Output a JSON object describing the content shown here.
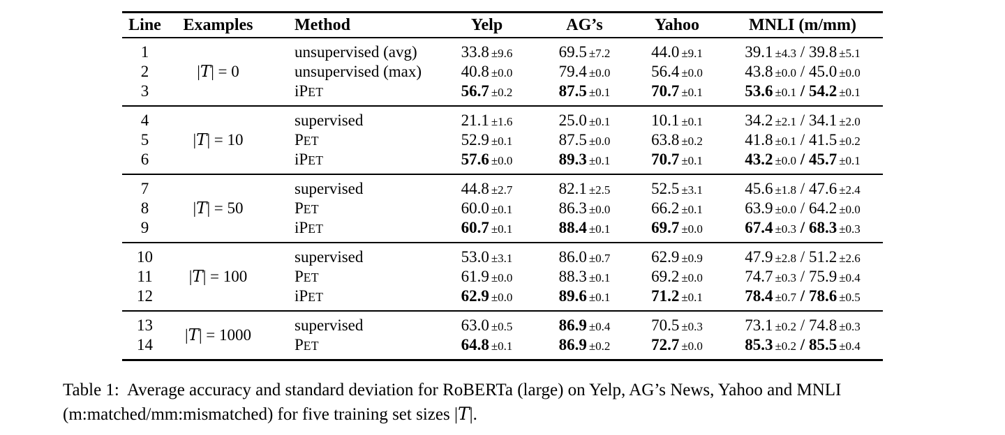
{
  "table": {
    "headers": [
      "Line",
      "Examples",
      "Method",
      "Yelp",
      "AG’s",
      "Yahoo",
      "MNLI (m/mm)"
    ],
    "groups": [
      {
        "examples": {
          "pre": "|",
          "sym": "T",
          "post": "| = 0"
        },
        "rows": [
          {
            "line": "1",
            "method": [
              {
                "t": "unsupervised (avg)"
              }
            ],
            "cells": [
              {
                "val": "33.8",
                "pm": "±9.6",
                "bold": false
              },
              {
                "val": "69.5",
                "pm": "±7.2",
                "bold": false
              },
              {
                "val": "44.0",
                "pm": "±9.1",
                "bold": false
              }
            ],
            "mnli": {
              "m": {
                "val": "39.1",
                "pm": "±4.3",
                "bold": false
              },
              "mm": {
                "val": "39.8",
                "pm": "±5.1",
                "bold": false
              }
            }
          },
          {
            "line": "2",
            "method": [
              {
                "t": "unsupervised (max)"
              }
            ],
            "cells": [
              {
                "val": "40.8",
                "pm": "±0.0",
                "bold": false
              },
              {
                "val": "79.4",
                "pm": "±0.0",
                "bold": false
              },
              {
                "val": "56.4",
                "pm": "±0.0",
                "bold": false
              }
            ],
            "mnli": {
              "m": {
                "val": "43.8",
                "pm": "±0.0",
                "bold": false
              },
              "mm": {
                "val": "45.0",
                "pm": "±0.0",
                "bold": false
              }
            }
          },
          {
            "line": "3",
            "method": [
              {
                "t": "iP"
              },
              {
                "t": "ET",
                "sc": true
              }
            ],
            "cells": [
              {
                "val": "56.7",
                "pm": "±0.2",
                "bold": true
              },
              {
                "val": "87.5",
                "pm": "±0.1",
                "bold": true
              },
              {
                "val": "70.7",
                "pm": "±0.1",
                "bold": true
              }
            ],
            "mnli": {
              "m": {
                "val": "53.6",
                "pm": "±0.1",
                "bold": true
              },
              "mm": {
                "val": "54.2",
                "pm": "±0.1",
                "bold": true
              }
            }
          }
        ]
      },
      {
        "examples": {
          "pre": "|",
          "sym": "T",
          "post": "| = 10"
        },
        "rows": [
          {
            "line": "4",
            "method": [
              {
                "t": "supervised"
              }
            ],
            "cells": [
              {
                "val": "21.1",
                "pm": "±1.6",
                "bold": false
              },
              {
                "val": "25.0",
                "pm": "±0.1",
                "bold": false
              },
              {
                "val": "10.1",
                "pm": "±0.1",
                "bold": false
              }
            ],
            "mnli": {
              "m": {
                "val": "34.2",
                "pm": "±2.1",
                "bold": false
              },
              "mm": {
                "val": "34.1",
                "pm": "±2.0",
                "bold": false
              }
            }
          },
          {
            "line": "5",
            "method": [
              {
                "t": "P"
              },
              {
                "t": "ET",
                "sc": true
              }
            ],
            "cells": [
              {
                "val": "52.9",
                "pm": "±0.1",
                "bold": false
              },
              {
                "val": "87.5",
                "pm": "±0.0",
                "bold": false
              },
              {
                "val": "63.8",
                "pm": "±0.2",
                "bold": false
              }
            ],
            "mnli": {
              "m": {
                "val": "41.8",
                "pm": "±0.1",
                "bold": false
              },
              "mm": {
                "val": "41.5",
                "pm": "±0.2",
                "bold": false
              }
            }
          },
          {
            "line": "6",
            "method": [
              {
                "t": "iP"
              },
              {
                "t": "ET",
                "sc": true
              }
            ],
            "cells": [
              {
                "val": "57.6",
                "pm": "±0.0",
                "bold": true
              },
              {
                "val": "89.3",
                "pm": "±0.1",
                "bold": true
              },
              {
                "val": "70.7",
                "pm": "±0.1",
                "bold": true
              }
            ],
            "mnli": {
              "m": {
                "val": "43.2",
                "pm": "±0.0",
                "bold": true
              },
              "mm": {
                "val": "45.7",
                "pm": "±0.1",
                "bold": true
              }
            }
          }
        ]
      },
      {
        "examples": {
          "pre": "|",
          "sym": "T",
          "post": "| = 50"
        },
        "rows": [
          {
            "line": "7",
            "method": [
              {
                "t": "supervised"
              }
            ],
            "cells": [
              {
                "val": "44.8",
                "pm": "±2.7",
                "bold": false
              },
              {
                "val": "82.1",
                "pm": "±2.5",
                "bold": false
              },
              {
                "val": "52.5",
                "pm": "±3.1",
                "bold": false
              }
            ],
            "mnli": {
              "m": {
                "val": "45.6",
                "pm": "±1.8",
                "bold": false
              },
              "mm": {
                "val": "47.6",
                "pm": "±2.4",
                "bold": false
              }
            }
          },
          {
            "line": "8",
            "method": [
              {
                "t": "P"
              },
              {
                "t": "ET",
                "sc": true
              }
            ],
            "cells": [
              {
                "val": "60.0",
                "pm": "±0.1",
                "bold": false
              },
              {
                "val": "86.3",
                "pm": "±0.0",
                "bold": false
              },
              {
                "val": "66.2",
                "pm": "±0.1",
                "bold": false
              }
            ],
            "mnli": {
              "m": {
                "val": "63.9",
                "pm": "±0.0",
                "bold": false
              },
              "mm": {
                "val": "64.2",
                "pm": "±0.0",
                "bold": false
              }
            }
          },
          {
            "line": "9",
            "method": [
              {
                "t": "iP"
              },
              {
                "t": "ET",
                "sc": true
              }
            ],
            "cells": [
              {
                "val": "60.7",
                "pm": "±0.1",
                "bold": true
              },
              {
                "val": "88.4",
                "pm": "±0.1",
                "bold": true
              },
              {
                "val": "69.7",
                "pm": "±0.0",
                "bold": true
              }
            ],
            "mnli": {
              "m": {
                "val": "67.4",
                "pm": "±0.3",
                "bold": true
              },
              "mm": {
                "val": "68.3",
                "pm": "±0.3",
                "bold": true
              }
            }
          }
        ]
      },
      {
        "examples": {
          "pre": "|",
          "sym": "T",
          "post": "| = 100"
        },
        "rows": [
          {
            "line": "10",
            "method": [
              {
                "t": "supervised"
              }
            ],
            "cells": [
              {
                "val": "53.0",
                "pm": "±3.1",
                "bold": false
              },
              {
                "val": "86.0",
                "pm": "±0.7",
                "bold": false
              },
              {
                "val": "62.9",
                "pm": "±0.9",
                "bold": false
              }
            ],
            "mnli": {
              "m": {
                "val": "47.9",
                "pm": "±2.8",
                "bold": false
              },
              "mm": {
                "val": "51.2",
                "pm": "±2.6",
                "bold": false
              }
            }
          },
          {
            "line": "11",
            "method": [
              {
                "t": "P"
              },
              {
                "t": "ET",
                "sc": true
              }
            ],
            "cells": [
              {
                "val": "61.9",
                "pm": "±0.0",
                "bold": false
              },
              {
                "val": "88.3",
                "pm": "±0.1",
                "bold": false
              },
              {
                "val": "69.2",
                "pm": "±0.0",
                "bold": false
              }
            ],
            "mnli": {
              "m": {
                "val": "74.7",
                "pm": "±0.3",
                "bold": false
              },
              "mm": {
                "val": "75.9",
                "pm": "±0.4",
                "bold": false
              }
            }
          },
          {
            "line": "12",
            "method": [
              {
                "t": "iP"
              },
              {
                "t": "ET",
                "sc": true
              }
            ],
            "cells": [
              {
                "val": "62.9",
                "pm": "±0.0",
                "bold": true
              },
              {
                "val": "89.6",
                "pm": "±0.1",
                "bold": true
              },
              {
                "val": "71.2",
                "pm": "±0.1",
                "bold": true
              }
            ],
            "mnli": {
              "m": {
                "val": "78.4",
                "pm": "±0.7",
                "bold": true
              },
              "mm": {
                "val": "78.6",
                "pm": "±0.5",
                "bold": true
              }
            }
          }
        ]
      },
      {
        "examples": {
          "pre": "|",
          "sym": "T",
          "post": "| = 1000"
        },
        "rows": [
          {
            "line": "13",
            "method": [
              {
                "t": "supervised"
              }
            ],
            "cells": [
              {
                "val": "63.0",
                "pm": "±0.5",
                "bold": false
              },
              {
                "val": "86.9",
                "pm": "±0.4",
                "bold": true
              },
              {
                "val": "70.5",
                "pm": "±0.3",
                "bold": false
              }
            ],
            "mnli": {
              "m": {
                "val": "73.1",
                "pm": "±0.2",
                "bold": false
              },
              "mm": {
                "val": "74.8",
                "pm": "±0.3",
                "bold": false
              }
            }
          },
          {
            "line": "14",
            "method": [
              {
                "t": "P"
              },
              {
                "t": "ET",
                "sc": true
              }
            ],
            "cells": [
              {
                "val": "64.8",
                "pm": "±0.1",
                "bold": true
              },
              {
                "val": "86.9",
                "pm": "±0.2",
                "bold": true
              },
              {
                "val": "72.7",
                "pm": "±0.0",
                "bold": true
              }
            ],
            "mnli": {
              "m": {
                "val": "85.3",
                "pm": "±0.2",
                "bold": true
              },
              "mm": {
                "val": "85.5",
                "pm": "±0.4",
                "bold": true
              }
            }
          }
        ]
      }
    ]
  },
  "caption": {
    "line1": "Table 1:  Average accuracy and standard deviation for RoBERTa (large) on Yelp, AG’s News, Yahoo and MNLI",
    "line2_pre": "(m:matched/mm:mismatched) for five training set sizes |",
    "line2_symbol": "T",
    "line2_post": "|."
  }
}
